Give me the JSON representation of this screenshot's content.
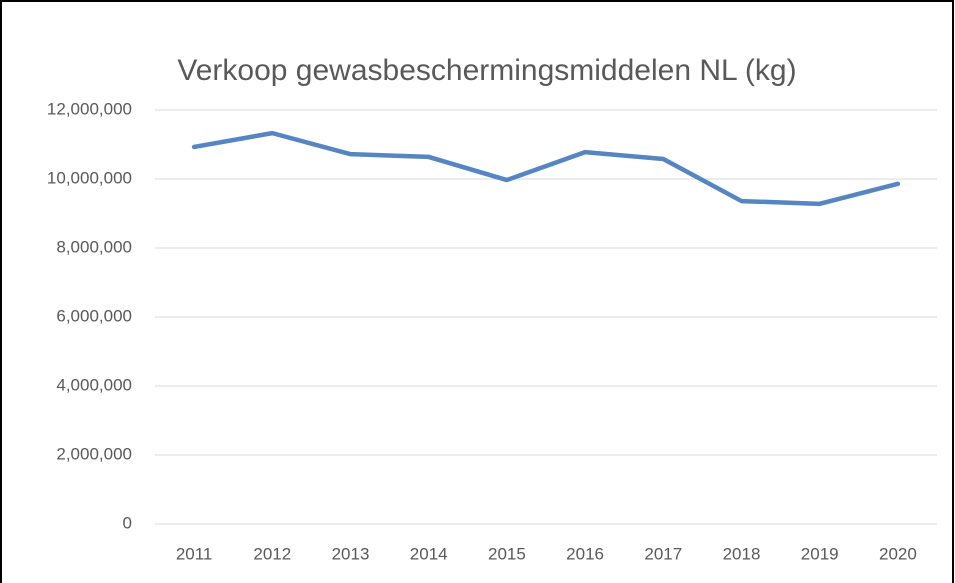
{
  "chart_data": {
    "type": "line",
    "title": "Verkoop gewasbeschermingsmiddelen  NL (kg)",
    "categories": [
      "2011",
      "2012",
      "2013",
      "2014",
      "2015",
      "2016",
      "2017",
      "2018",
      "2019",
      "2020"
    ],
    "series": [
      {
        "name": "Verkoop",
        "color": "#5585c2",
        "values": [
          10930000,
          11330000,
          10720000,
          10640000,
          9970000,
          10780000,
          10580000,
          9360000,
          9280000,
          9860000
        ]
      }
    ],
    "ylim": [
      0,
      12000000
    ],
    "yticks": [
      0,
      {
        "value": 2000000,
        "label": "2,000,000"
      },
      {
        "value": 4000000,
        "label": "4,000,000"
      },
      {
        "value": 6000000,
        "label": "6,000,000"
      },
      {
        "value": 8000000,
        "label": "8,000,000"
      },
      {
        "value": 10000000,
        "label": "10,000,000"
      },
      {
        "value": 12000000,
        "label": "12,000,000"
      }
    ],
    "grid": true
  }
}
